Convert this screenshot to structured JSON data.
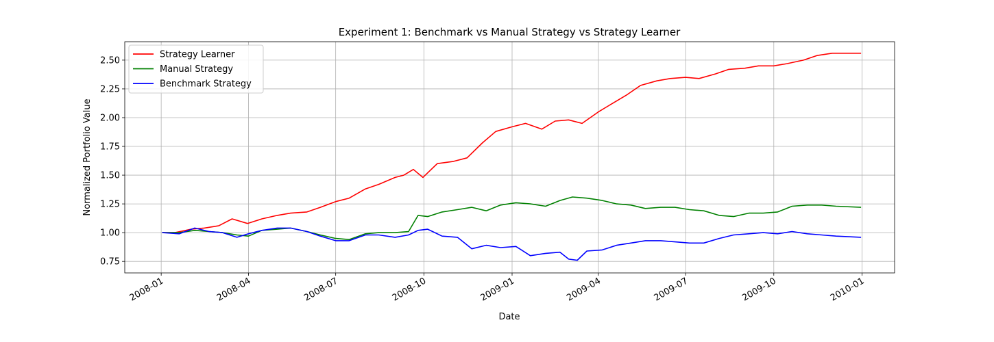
{
  "chart_data": {
    "type": "line",
    "title": "Experiment 1: Benchmark vs Manual Strategy vs Strategy Learner",
    "xlabel": "Date",
    "ylabel": "Normalized Portfolio Value",
    "xlim": [
      "2007-11-24",
      "2010-02-04"
    ],
    "ylim": [
      0.65,
      2.66
    ],
    "x_ticks": [
      "2008-01",
      "2008-04",
      "2008-07",
      "2008-10",
      "2009-01",
      "2009-04",
      "2009-07",
      "2009-10",
      "2010-01"
    ],
    "y_ticks": [
      "0.75",
      "1.00",
      "1.25",
      "1.50",
      "1.75",
      "2.00",
      "2.25",
      "2.50"
    ],
    "grid": true,
    "legend_position": "top-left",
    "series": [
      {
        "name": "Strategy Learner",
        "color": "#ff0000",
        "x": [
          "2008-01-02",
          "2008-01-15",
          "2008-02-01",
          "2008-02-15",
          "2008-03-01",
          "2008-03-15",
          "2008-03-31",
          "2008-04-15",
          "2008-05-01",
          "2008-05-15",
          "2008-06-01",
          "2008-06-15",
          "2008-07-01",
          "2008-07-15",
          "2008-08-01",
          "2008-08-15",
          "2008-09-01",
          "2008-09-10",
          "2008-09-20",
          "2008-09-30",
          "2008-10-15",
          "2008-11-01",
          "2008-11-15",
          "2008-12-01",
          "2008-12-15",
          "2009-01-01",
          "2009-01-15",
          "2009-02-01",
          "2009-02-15",
          "2009-03-01",
          "2009-03-15",
          "2009-04-01",
          "2009-04-15",
          "2009-05-01",
          "2009-05-15",
          "2009-06-01",
          "2009-06-15",
          "2009-07-01",
          "2009-07-15",
          "2009-08-01",
          "2009-08-15",
          "2009-09-01",
          "2009-09-15",
          "2009-10-01",
          "2009-10-15",
          "2009-11-01",
          "2009-11-15",
          "2009-12-01",
          "2009-12-15",
          "2009-12-31"
        ],
        "y": [
          1.0,
          1.0,
          1.03,
          1.04,
          1.06,
          1.12,
          1.08,
          1.12,
          1.15,
          1.17,
          1.18,
          1.22,
          1.27,
          1.3,
          1.38,
          1.42,
          1.48,
          1.5,
          1.55,
          1.48,
          1.6,
          1.62,
          1.65,
          1.78,
          1.88,
          1.92,
          1.95,
          1.9,
          1.97,
          1.98,
          1.95,
          2.05,
          2.12,
          2.2,
          2.28,
          2.32,
          2.34,
          2.35,
          2.34,
          2.38,
          2.42,
          2.43,
          2.45,
          2.45,
          2.47,
          2.5,
          2.54,
          2.56,
          2.56,
          2.56
        ]
      },
      {
        "name": "Manual Strategy",
        "color": "#008000",
        "x": [
          "2008-01-02",
          "2008-01-20",
          "2008-02-05",
          "2008-02-20",
          "2008-03-05",
          "2008-03-20",
          "2008-04-01",
          "2008-04-15",
          "2008-05-01",
          "2008-05-15",
          "2008-06-01",
          "2008-06-15",
          "2008-07-01",
          "2008-07-15",
          "2008-08-01",
          "2008-08-15",
          "2008-09-01",
          "2008-09-15",
          "2008-09-25",
          "2008-10-05",
          "2008-10-20",
          "2008-11-05",
          "2008-11-20",
          "2008-12-05",
          "2008-12-20",
          "2009-01-05",
          "2009-01-20",
          "2009-02-05",
          "2009-02-20",
          "2009-03-05",
          "2009-03-20",
          "2009-04-05",
          "2009-04-20",
          "2009-05-05",
          "2009-05-20",
          "2009-06-05",
          "2009-06-20",
          "2009-07-05",
          "2009-07-20",
          "2009-08-05",
          "2009-08-20",
          "2009-09-05",
          "2009-09-20",
          "2009-10-05",
          "2009-10-20",
          "2009-11-05",
          "2009-11-20",
          "2009-12-05",
          "2009-12-31"
        ],
        "y": [
          1.0,
          1.0,
          1.02,
          1.01,
          1.0,
          0.98,
          0.97,
          1.02,
          1.03,
          1.04,
          1.01,
          0.98,
          0.95,
          0.94,
          0.99,
          1.0,
          1.0,
          1.01,
          1.15,
          1.14,
          1.18,
          1.2,
          1.22,
          1.19,
          1.24,
          1.26,
          1.25,
          1.23,
          1.28,
          1.31,
          1.3,
          1.28,
          1.25,
          1.24,
          1.21,
          1.22,
          1.22,
          1.2,
          1.19,
          1.15,
          1.14,
          1.17,
          1.17,
          1.18,
          1.23,
          1.24,
          1.24,
          1.23,
          1.22
        ]
      },
      {
        "name": "Benchmark Strategy",
        "color": "#0000ff",
        "x": [
          "2008-01-02",
          "2008-01-20",
          "2008-02-05",
          "2008-02-20",
          "2008-03-05",
          "2008-03-20",
          "2008-04-01",
          "2008-04-15",
          "2008-05-01",
          "2008-05-15",
          "2008-06-01",
          "2008-06-15",
          "2008-07-01",
          "2008-07-15",
          "2008-08-01",
          "2008-08-15",
          "2008-09-01",
          "2008-09-15",
          "2008-09-25",
          "2008-10-05",
          "2008-10-20",
          "2008-11-05",
          "2008-11-20",
          "2008-12-05",
          "2008-12-20",
          "2009-01-05",
          "2009-01-20",
          "2009-02-05",
          "2009-02-20",
          "2009-03-01",
          "2009-03-10",
          "2009-03-20",
          "2009-04-05",
          "2009-04-20",
          "2009-05-05",
          "2009-05-20",
          "2009-06-05",
          "2009-06-20",
          "2009-07-05",
          "2009-07-20",
          "2009-08-05",
          "2009-08-20",
          "2009-09-05",
          "2009-09-20",
          "2009-10-05",
          "2009-10-20",
          "2009-11-05",
          "2009-11-20",
          "2009-12-05",
          "2009-12-31"
        ],
        "y": [
          1.0,
          0.99,
          1.04,
          1.01,
          1.0,
          0.96,
          0.99,
          1.02,
          1.04,
          1.04,
          1.01,
          0.97,
          0.93,
          0.93,
          0.98,
          0.98,
          0.96,
          0.98,
          1.02,
          1.03,
          0.97,
          0.96,
          0.86,
          0.89,
          0.87,
          0.88,
          0.8,
          0.82,
          0.83,
          0.77,
          0.76,
          0.84,
          0.85,
          0.89,
          0.91,
          0.93,
          0.93,
          0.92,
          0.91,
          0.91,
          0.95,
          0.98,
          0.99,
          1.0,
          0.99,
          1.01,
          0.99,
          0.98,
          0.97,
          0.96
        ]
      }
    ]
  }
}
